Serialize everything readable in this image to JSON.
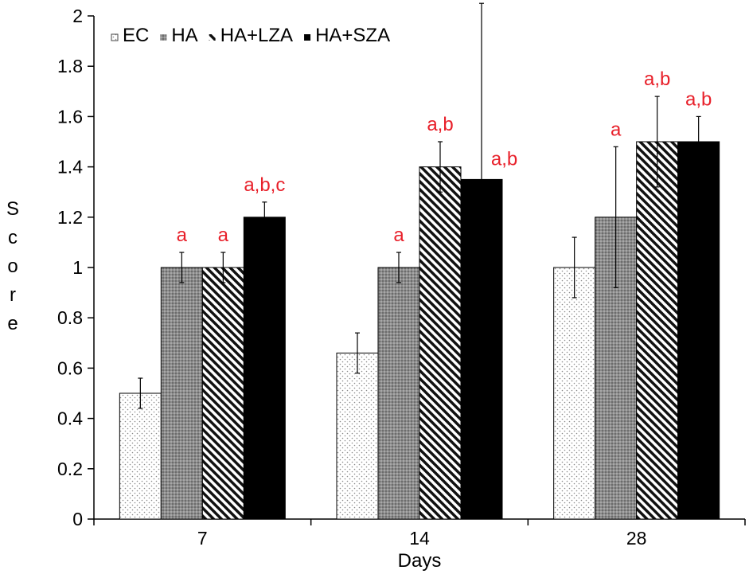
{
  "chart_data": {
    "type": "bar",
    "title": "",
    "xlabel": "Days",
    "ylabel": "Score",
    "ylim": [
      0,
      2
    ],
    "yticks": [
      "0",
      "0.2",
      "0.4",
      "0.6",
      "0.8",
      "1",
      "1.2",
      "1.4",
      "1.6",
      "1.8",
      "2"
    ],
    "categories": [
      "7",
      "14",
      "28"
    ],
    "grid": false,
    "legend_position": "top-left",
    "annotation_color": "#e8202a",
    "series": [
      {
        "name": "EC",
        "pattern": "sparse-dots",
        "values": [
          0.5,
          0.66,
          1.0
        ],
        "errors": [
          0.06,
          0.08,
          0.12
        ],
        "annotations": [
          "",
          "",
          ""
        ]
      },
      {
        "name": "HA",
        "pattern": "dense-dots",
        "values": [
          1.0,
          1.0,
          1.2
        ],
        "errors": [
          0.06,
          0.06,
          0.28
        ],
        "annotations": [
          "a",
          "a",
          "a"
        ]
      },
      {
        "name": "HA+LZA",
        "pattern": "diagonal-hatch",
        "values": [
          1.0,
          1.4,
          1.5
        ],
        "errors": [
          0.06,
          0.1,
          0.18
        ],
        "annotations": [
          "a",
          "a,b",
          "a,b"
        ]
      },
      {
        "name": "HA+SZA",
        "pattern": "solid-black",
        "values": [
          1.2,
          1.35,
          1.5
        ],
        "errors": [
          0.06,
          0.7,
          0.1
        ],
        "annotations": [
          "a,b,c",
          "a,b",
          "a,b"
        ]
      }
    ]
  }
}
